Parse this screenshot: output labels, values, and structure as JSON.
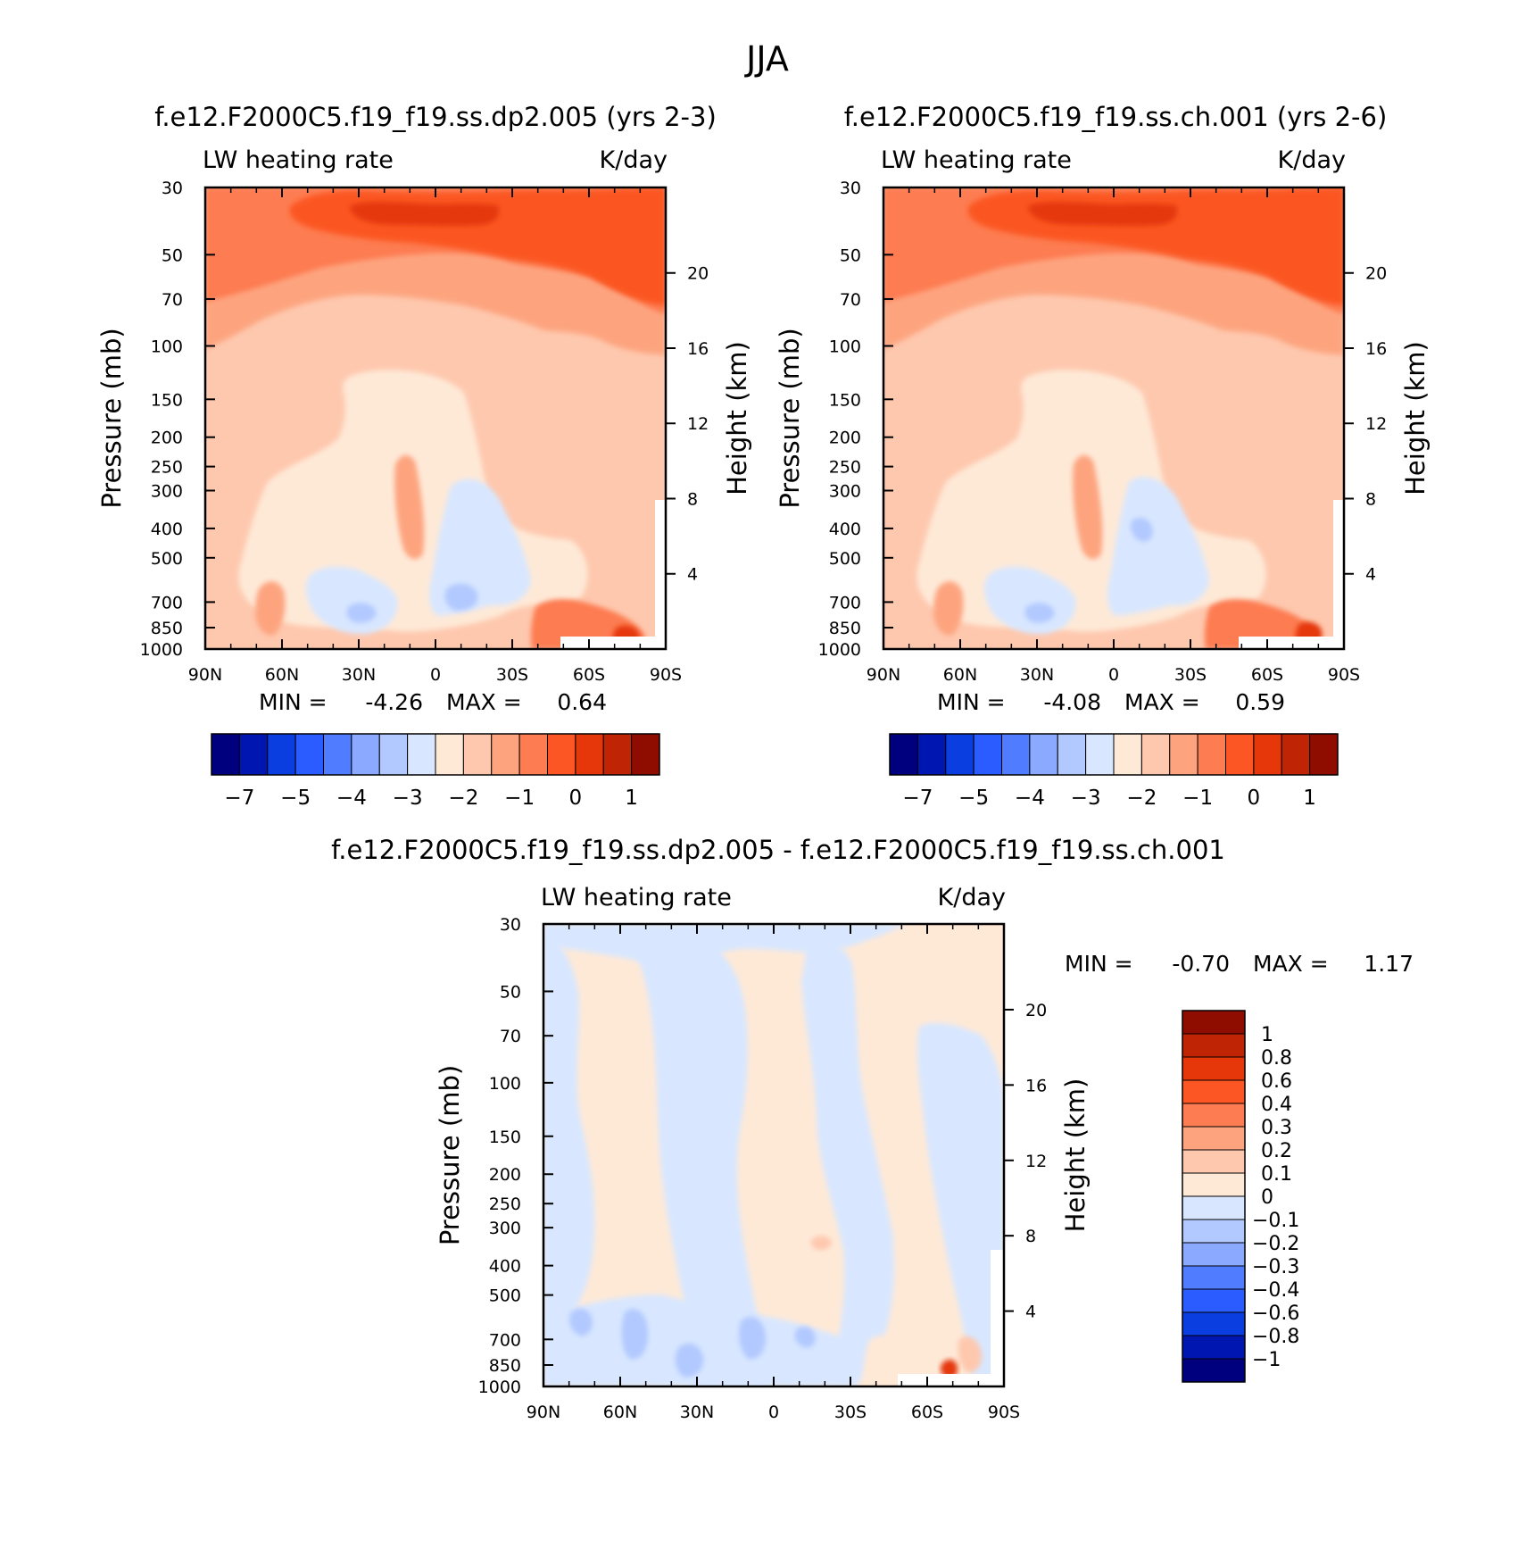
{
  "figure": {
    "title": "JJA",
    "colors": {
      "abs": [
        "#00007f",
        "#0016b0",
        "#0b3ee0",
        "#2a5cff",
        "#507dff",
        "#8aa9ff",
        "#b2c9ff",
        "#d8e7ff",
        "#fee9d7",
        "#fec8ae",
        "#fda47f",
        "#fd7c51",
        "#fb5624",
        "#e5370a",
        "#bf2405",
        "#8e0c00"
      ],
      "diff": [
        "#00007f",
        "#0016b0",
        "#0b3ee0",
        "#2a5cff",
        "#507dff",
        "#8aa9ff",
        "#b2c9ff",
        "#d8e7ff",
        "#fee9d7",
        "#fec8ae",
        "#fda47f",
        "#fd7c51",
        "#fb5624",
        "#e5370a",
        "#bf2405",
        "#8e0c00"
      ]
    }
  },
  "chart_data": [
    {
      "type": "heatmap",
      "title": "f.e12.F2000C5.f19_f19.ss.dp2.005 (yrs 2-3)",
      "left_label": "LW heating rate",
      "right_label": "K/day",
      "xlabel": "",
      "ylabel": "Pressure (mb)",
      "y2label": "Height (km)",
      "x_ticks": [
        "90N",
        "60N",
        "30N",
        "0",
        "30S",
        "60S",
        "90S"
      ],
      "y_ticks": [
        30,
        50,
        70,
        100,
        150,
        200,
        250,
        300,
        400,
        500,
        700,
        850,
        1000
      ],
      "y2_ticks": [
        20,
        16,
        12,
        8,
        4
      ],
      "xlim": [
        90,
        -90
      ],
      "ylim": [
        1000,
        30
      ],
      "min_label": "MIN =",
      "min": "-4.26",
      "max_label": "MAX =",
      "max": "0.64",
      "levels": [
        -7,
        -6,
        -5,
        -4.5,
        -4,
        -3.5,
        -3,
        -2.5,
        -2,
        -1.5,
        -1,
        -0.5,
        0,
        0.5,
        1
      ],
      "colorbar_labels": [
        "-7",
        "-5",
        "-4",
        "-3",
        "-2",
        "-1",
        "0",
        "1"
      ]
    },
    {
      "type": "heatmap",
      "title": "f.e12.F2000C5.f19_f19.ss.ch.001 (yrs 2-6)",
      "left_label": "LW heating rate",
      "right_label": "K/day",
      "xlabel": "",
      "ylabel": "Pressure (mb)",
      "y2label": "Height (km)",
      "x_ticks": [
        "90N",
        "60N",
        "30N",
        "0",
        "30S",
        "60S",
        "90S"
      ],
      "y_ticks": [
        30,
        50,
        70,
        100,
        150,
        200,
        250,
        300,
        400,
        500,
        700,
        850,
        1000
      ],
      "y2_ticks": [
        20,
        16,
        12,
        8,
        4
      ],
      "xlim": [
        90,
        -90
      ],
      "ylim": [
        1000,
        30
      ],
      "min_label": "MIN =",
      "min": "-4.08",
      "max_label": "MAX =",
      "max": "0.59",
      "levels": [
        -7,
        -6,
        -5,
        -4.5,
        -4,
        -3.5,
        -3,
        -2.5,
        -2,
        -1.5,
        -1,
        -0.5,
        0,
        0.5,
        1
      ],
      "colorbar_labels": [
        "-7",
        "-5",
        "-4",
        "-3",
        "-2",
        "-1",
        "0",
        "1"
      ]
    },
    {
      "type": "heatmap",
      "title": "f.e12.F2000C5.f19_f19.ss.dp2.005 - f.e12.F2000C5.f19_f19.ss.ch.001",
      "left_label": "LW heating rate",
      "right_label": "K/day",
      "xlabel": "",
      "ylabel": "Pressure (mb)",
      "y2label": "Height (km)",
      "x_ticks": [
        "90N",
        "60N",
        "30N",
        "0",
        "30S",
        "60S",
        "90S"
      ],
      "y_ticks": [
        30,
        50,
        70,
        100,
        150,
        200,
        250,
        300,
        400,
        500,
        700,
        850,
        1000
      ],
      "y2_ticks": [
        20,
        16,
        12,
        8,
        4
      ],
      "xlim": [
        90,
        -90
      ],
      "ylim": [
        1000,
        30
      ],
      "min_label": "MIN =",
      "min": "-0.70",
      "max_label": "MAX =",
      "max": "1.17",
      "levels": [
        -1,
        -0.8,
        -0.6,
        -0.4,
        -0.3,
        -0.2,
        -0.1,
        0,
        0.1,
        0.2,
        0.3,
        0.4,
        0.6,
        0.8,
        1
      ],
      "colorbar_labels": [
        "1",
        "0.8",
        "0.6",
        "0.4",
        "0.3",
        "0.2",
        "0.1",
        "0",
        "-0.1",
        "-0.2",
        "-0.3",
        "-0.4",
        "-0.6",
        "-0.8",
        "-1"
      ]
    }
  ]
}
